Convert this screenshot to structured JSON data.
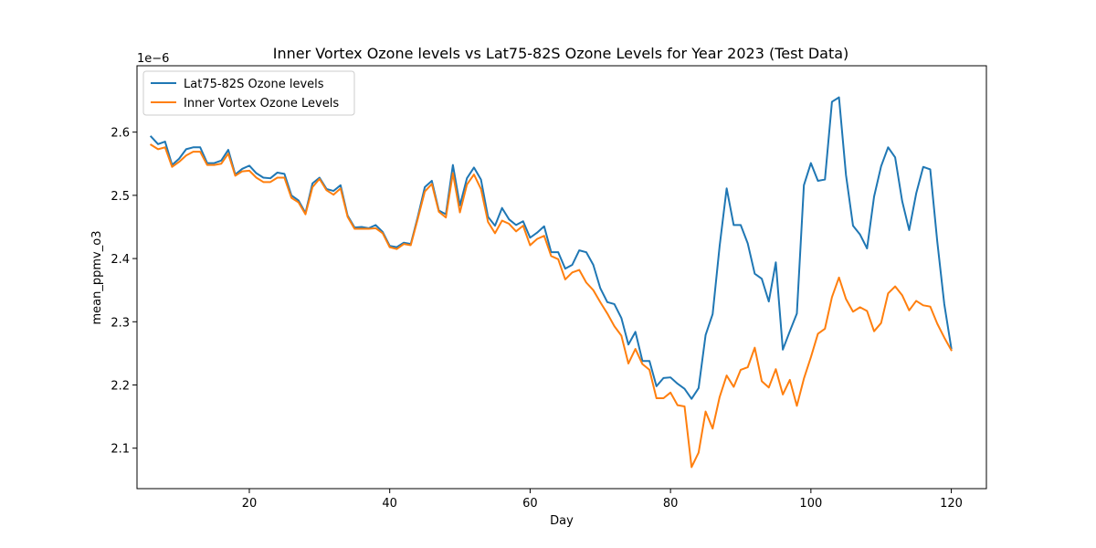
{
  "chart_data": {
    "type": "line",
    "title": "Inner Vortex Ozone levels vs Lat75-82S Ozone Levels for Year 2023 (Test Data)",
    "xlabel": "Day",
    "ylabel": "mean_ppmv_o3",
    "y_offset_label": "1e−6",
    "xlim": [
      4,
      125
    ],
    "ylim": [
      2.036,
      2.705
    ],
    "x_ticks": [
      20,
      40,
      60,
      80,
      100,
      120
    ],
    "y_ticks": [
      2.1,
      2.2,
      2.3,
      2.4,
      2.5,
      2.6
    ],
    "y_tick_labels": [
      "2.1",
      "2.2",
      "2.3",
      "2.4",
      "2.5",
      "2.6"
    ],
    "grid": false,
    "legend_position": "upper-left",
    "colors": {
      "series_1": "#1f77b4",
      "series_2": "#ff7f0e"
    },
    "x": [
      6,
      7,
      8,
      9,
      10,
      11,
      12,
      13,
      14,
      15,
      16,
      17,
      18,
      19,
      20,
      21,
      22,
      23,
      24,
      25,
      26,
      27,
      28,
      29,
      30,
      31,
      32,
      33,
      34,
      35,
      36,
      37,
      38,
      39,
      40,
      41,
      42,
      43,
      44,
      45,
      46,
      47,
      48,
      49,
      50,
      51,
      52,
      53,
      54,
      55,
      56,
      57,
      58,
      59,
      60,
      61,
      62,
      63,
      64,
      65,
      66,
      67,
      68,
      69,
      70,
      71,
      72,
      73,
      74,
      75,
      76,
      77,
      78,
      79,
      80,
      81,
      82,
      83,
      84,
      85,
      86,
      87,
      88,
      89,
      90,
      91,
      92,
      93,
      94,
      95,
      96,
      97,
      98,
      99,
      100,
      101,
      102,
      103,
      104,
      105,
      106,
      107,
      108,
      109,
      110,
      111,
      112,
      113,
      114,
      115,
      116,
      117,
      118,
      119,
      120
    ],
    "series": [
      {
        "name": "Lat75-82S Ozone levels",
        "values": [
          2.593,
          2.581,
          2.585,
          2.548,
          2.558,
          2.573,
          2.576,
          2.576,
          2.551,
          2.551,
          2.555,
          2.572,
          2.533,
          2.542,
          2.547,
          2.535,
          2.528,
          2.527,
          2.536,
          2.534,
          2.5,
          2.492,
          2.472,
          2.519,
          2.528,
          2.51,
          2.507,
          2.516,
          2.468,
          2.449,
          2.45,
          2.448,
          2.453,
          2.442,
          2.42,
          2.418,
          2.425,
          2.423,
          2.466,
          2.513,
          2.523,
          2.476,
          2.47,
          2.548,
          2.484,
          2.527,
          2.544,
          2.525,
          2.466,
          2.452,
          2.48,
          2.462,
          2.453,
          2.459,
          2.433,
          2.441,
          2.451,
          2.41,
          2.41,
          2.384,
          2.39,
          2.413,
          2.41,
          2.39,
          2.353,
          2.331,
          2.328,
          2.306,
          2.264,
          2.284,
          2.238,
          2.238,
          2.198,
          2.211,
          2.212,
          2.202,
          2.194,
          2.178,
          2.195,
          2.279,
          2.312,
          2.42,
          2.511,
          2.453,
          2.453,
          2.424,
          2.376,
          2.368,
          2.332,
          2.394,
          2.256,
          2.285,
          2.313,
          2.516,
          2.551,
          2.523,
          2.525,
          2.648,
          2.655,
          2.532,
          2.452,
          2.438,
          2.416,
          2.498,
          2.546,
          2.576,
          2.56,
          2.491,
          2.445,
          2.503,
          2.545,
          2.541,
          2.427,
          2.328,
          2.258
        ]
      },
      {
        "name": "Inner Vortex Ozone Levels",
        "values": [
          2.58,
          2.573,
          2.576,
          2.545,
          2.553,
          2.563,
          2.569,
          2.569,
          2.548,
          2.548,
          2.55,
          2.566,
          2.531,
          2.538,
          2.539,
          2.528,
          2.521,
          2.521,
          2.528,
          2.528,
          2.496,
          2.489,
          2.47,
          2.513,
          2.526,
          2.508,
          2.501,
          2.511,
          2.466,
          2.447,
          2.447,
          2.447,
          2.448,
          2.44,
          2.418,
          2.415,
          2.423,
          2.421,
          2.463,
          2.506,
          2.518,
          2.474,
          2.465,
          2.535,
          2.473,
          2.517,
          2.533,
          2.51,
          2.458,
          2.44,
          2.46,
          2.455,
          2.443,
          2.452,
          2.421,
          2.431,
          2.436,
          2.404,
          2.399,
          2.367,
          2.378,
          2.382,
          2.362,
          2.35,
          2.331,
          2.313,
          2.293,
          2.278,
          2.234,
          2.257,
          2.233,
          2.224,
          2.179,
          2.179,
          2.188,
          2.168,
          2.166,
          2.07,
          2.093,
          2.158,
          2.131,
          2.181,
          2.215,
          2.197,
          2.224,
          2.228,
          2.259,
          2.206,
          2.196,
          2.225,
          2.185,
          2.208,
          2.167,
          2.21,
          2.244,
          2.281,
          2.289,
          2.339,
          2.37,
          2.336,
          2.316,
          2.323,
          2.317,
          2.285,
          2.298,
          2.345,
          2.356,
          2.342,
          2.318,
          2.333,
          2.326,
          2.324,
          2.297,
          2.275,
          2.255
        ]
      }
    ]
  }
}
